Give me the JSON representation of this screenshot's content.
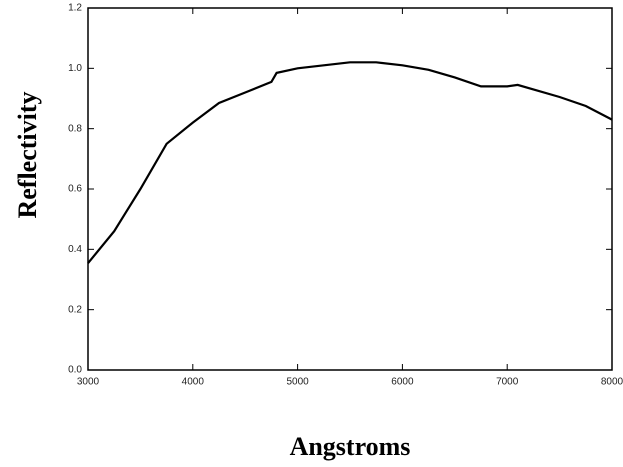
{
  "chart_data": {
    "type": "line",
    "x_label": "Angstroms",
    "y_label": "Reflectivity",
    "x": [
      3000,
      3250,
      3500,
      3750,
      4000,
      4250,
      4500,
      4750,
      4800,
      5000,
      5250,
      5500,
      5750,
      6000,
      6250,
      6500,
      6750,
      7000,
      7100,
      7250,
      7500,
      7750,
      8000
    ],
    "series": [
      {
        "color": "#000000",
        "values": [
          0.354,
          0.46,
          0.6,
          0.75,
          0.82,
          0.885,
          0.92,
          0.955,
          0.985,
          1.0,
          1.01,
          1.02,
          1.02,
          1.01,
          0.995,
          0.97,
          0.94,
          0.94,
          0.945,
          0.93,
          0.905,
          0.875,
          0.83
        ]
      }
    ],
    "xlim": [
      3000,
      8000
    ],
    "xticks": [
      3000,
      4000,
      5000,
      6000,
      7000,
      8000
    ],
    "ylim": [
      0,
      1.2
    ],
    "yticks": [
      {
        "value": 0,
        "label": "0.0"
      },
      0.2,
      0.4,
      0.6,
      0.8,
      {
        "value": 1,
        "label": "1.0"
      },
      1.2
    ],
    "grid": false
  }
}
